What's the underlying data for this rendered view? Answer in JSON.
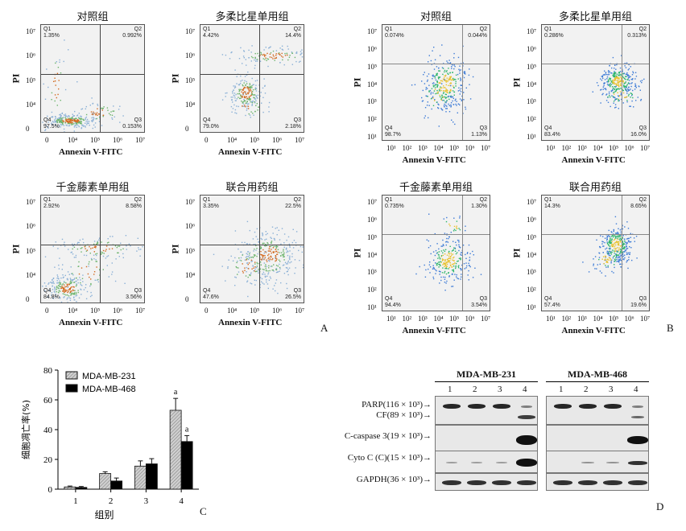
{
  "flow_panels": [
    {
      "title": "对照组",
      "x_ticks": [
        "0",
        "10⁴",
        "10⁵",
        "10⁶",
        "10⁷"
      ],
      "y_ticks": [
        "10⁷",
        "10⁶",
        "10⁵",
        "10⁴",
        "0"
      ],
      "quadrants": {
        "q1": "Q1",
        "q1v": "1.35%",
        "q2": "Q2",
        "q2v": "0.992%",
        "q3": "Q3",
        "q3v": "0.153%",
        "q4": "Q4",
        "q4v": "97.5%"
      },
      "color": "#8ab0d6"
    },
    {
      "title": "多柔比星单用组",
      "x_ticks": [
        "0",
        "10⁴",
        "10⁵",
        "10⁶",
        "10⁷"
      ],
      "y_ticks": [
        "10⁷",
        "10⁶",
        "10⁵",
        "10⁴",
        "0"
      ],
      "quadrants": {
        "q1": "Q1",
        "q1v": "4.42%",
        "q2": "Q2",
        "q2v": "14.4%",
        "q3": "Q3",
        "q3v": "2.18%",
        "q4": "Q4",
        "q4v": "79.0%"
      },
      "color": "#8ab0d6"
    },
    {
      "title": "对照组",
      "x_ticks": [
        "10¹",
        "10²",
        "10³",
        "10⁴",
        "10⁵",
        "10⁶",
        "10⁷"
      ],
      "y_ticks": [
        "10⁷",
        "10⁶",
        "10⁵",
        "10⁴",
        "10³",
        "10²",
        "10¹"
      ],
      "quadrants": {
        "q1": "Q1",
        "q1v": "0.074%",
        "q2": "Q2",
        "q2v": "0.044%",
        "q3": "Q3",
        "q3v": "1.13%",
        "q4": "Q4",
        "q4v": "98.7%"
      },
      "color": "#3c7bd6"
    },
    {
      "title": "多柔比星单用组",
      "x_ticks": [
        "10¹",
        "10²",
        "10³",
        "10⁴",
        "10⁵",
        "10⁶",
        "10⁷"
      ],
      "y_ticks": [
        "10⁷",
        "10⁶",
        "10⁵",
        "10⁴",
        "10³",
        "10²",
        "10¹"
      ],
      "quadrants": {
        "q1": "Q1",
        "q1v": "0.286%",
        "q2": "Q2",
        "q2v": "0.313%",
        "q3": "Q3",
        "q3v": "16.0%",
        "q4": "Q4",
        "q4v": "83.4%"
      },
      "color": "#3c7bd6"
    },
    {
      "title": "千金藤素单用组",
      "x_ticks": [
        "0",
        "10⁴",
        "10⁵",
        "10⁶",
        "10⁷"
      ],
      "y_ticks": [
        "10⁷",
        "10⁶",
        "10⁵",
        "10⁴",
        "0"
      ],
      "quadrants": {
        "q1": "Q1",
        "q1v": "2.92%",
        "q2": "Q2",
        "q2v": "8.58%",
        "q3": "Q3",
        "q3v": "3.56%",
        "q4": "Q4",
        "q4v": "84.8%"
      },
      "color": "#8ab0d6"
    },
    {
      "title": "联合用药组",
      "x_ticks": [
        "0",
        "10⁴",
        "10⁵",
        "10⁶",
        "10⁷"
      ],
      "y_ticks": [
        "10⁷",
        "10⁶",
        "10⁵",
        "10⁴",
        "0"
      ],
      "quadrants": {
        "q1": "Q1",
        "q1v": "3.35%",
        "q2": "Q2",
        "q2v": "22.5%",
        "q3": "Q3",
        "q3v": "26.5%",
        "q4": "Q4",
        "q4v": "47.6%"
      },
      "color": "#8ab0d6"
    },
    {
      "title": "千金藤素单用组",
      "x_ticks": [
        "10¹",
        "10²",
        "10³",
        "10⁴",
        "10⁵",
        "10⁶",
        "10⁷"
      ],
      "y_ticks": [
        "10⁷",
        "10⁶",
        "10⁵",
        "10⁴",
        "10³",
        "10²",
        "10¹"
      ],
      "quadrants": {
        "q1": "Q1",
        "q1v": "0.735%",
        "q2": "Q2",
        "q2v": "1.30%",
        "q3": "Q3",
        "q3v": "3.54%",
        "q4": "Q4",
        "q4v": "94.4%"
      },
      "color": "#3c7bd6"
    },
    {
      "title": "联合用药组",
      "x_ticks": [
        "10¹",
        "10²",
        "10³",
        "10⁴",
        "10⁵",
        "10⁶",
        "10⁷"
      ],
      "y_ticks": [
        "10⁷",
        "10⁶",
        "10⁵",
        "10⁴",
        "10³",
        "10²",
        "10¹"
      ],
      "quadrants": {
        "q1": "Q1",
        "q1v": "14.3%",
        "q2": "Q2",
        "q2v": "8.65%",
        "q3": "Q3",
        "q3v": "19.6%",
        "q4": "Q4",
        "q4v": "57.4%"
      },
      "color": "#3c7bd6"
    }
  ],
  "flow_axes": {
    "x": "Annexin V-FITC",
    "y": "PI"
  },
  "panel_letters": {
    "a": "A",
    "b": "B",
    "c": "C",
    "d": "D"
  },
  "chart_data": {
    "type": "bar",
    "categories": [
      "1",
      "2",
      "3",
      "4"
    ],
    "xlabel": "组别",
    "ylabel": "细胞凋亡率(%)",
    "ylim": [
      0,
      80
    ],
    "yticks": [
      "0",
      "20",
      "40",
      "60",
      "80"
    ],
    "legend_position": "top-left",
    "series": [
      {
        "name": "MDA-MB-231",
        "values": [
          1.5,
          10.5,
          15.5,
          53
        ],
        "errors": [
          0.6,
          1.2,
          3.5,
          8
        ],
        "color": "#c8c8c8"
      },
      {
        "name": "MDA-MB-468",
        "values": [
          1.2,
          5.5,
          17,
          32
        ],
        "errors": [
          0.6,
          2.0,
          3.5,
          4
        ],
        "color": "#000000"
      }
    ],
    "annotations": [
      {
        "category": "4",
        "series": 0,
        "text": "a"
      },
      {
        "category": "4",
        "series": 1,
        "text": "a"
      }
    ]
  },
  "western_blot": {
    "cell_lines": [
      "MDA-MB-231",
      "MDA-MB-468"
    ],
    "lanes": [
      "1",
      "2",
      "3",
      "4"
    ],
    "proteins": [
      "PARP(116 × 10³)→",
      "CF(89 × 10³)→",
      "C-caspase 3(19 × 10³)→",
      "Cyto C (C)(15 × 10³)→",
      "GAPDH(36 × 10³)→"
    ]
  }
}
